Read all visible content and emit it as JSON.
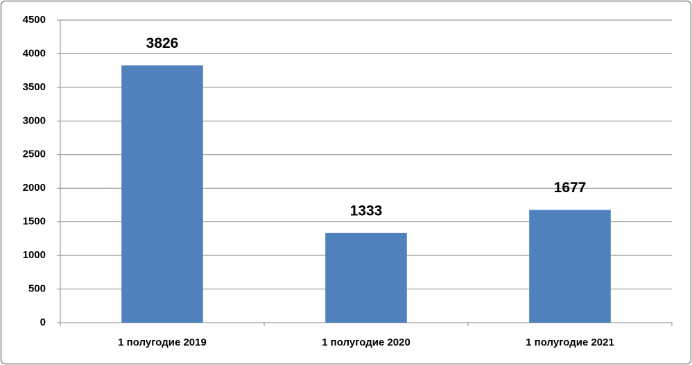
{
  "chart_data": {
    "type": "bar",
    "categories": [
      "1 полугодие 2019",
      "1 полугодие 2020",
      "1 полугодие 2021"
    ],
    "values": [
      3826,
      1333,
      1677
    ],
    "color": "#4f81bd",
    "ylim": [
      0,
      4500
    ],
    "yticks": [
      0,
      500,
      1000,
      1500,
      2000,
      2500,
      3000,
      3500,
      4000,
      4500
    ],
    "grid": true
  }
}
